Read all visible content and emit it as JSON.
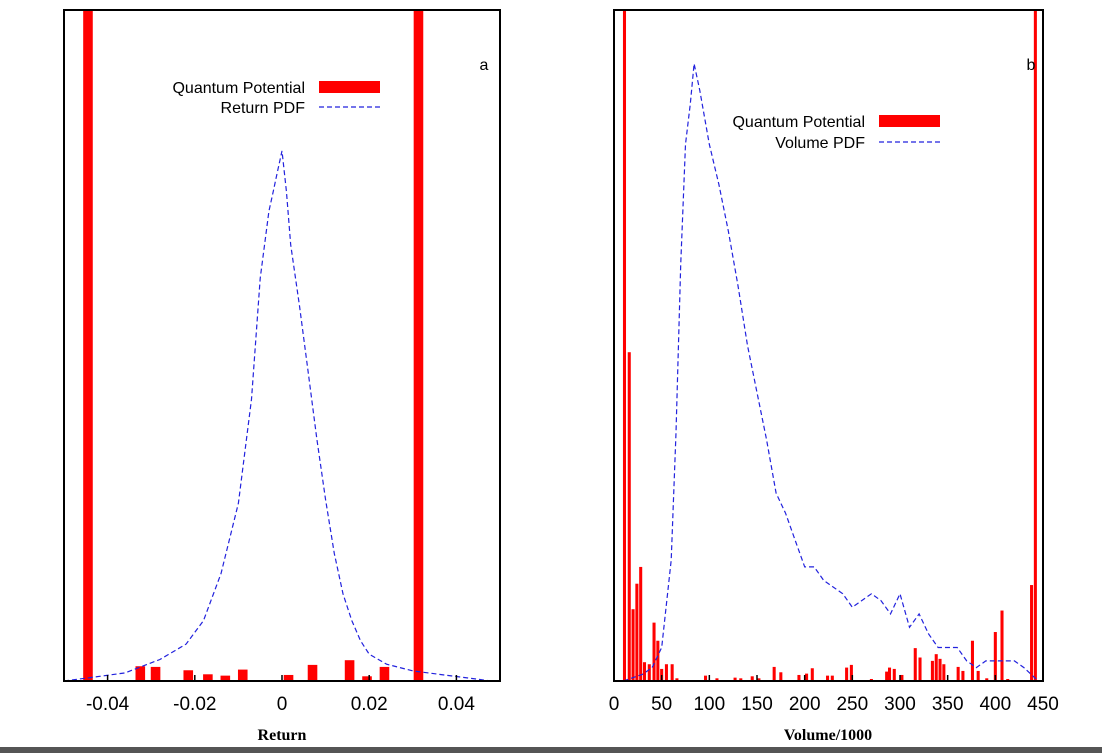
{
  "chart_data": [
    {
      "type": "bar",
      "panel_label": "a",
      "xlabel": "Return",
      "ylabel": "",
      "xlim": [
        -0.05,
        0.05
      ],
      "ylim": [
        0,
        1
      ],
      "x_ticks": [
        {
          "value": -0.04,
          "label": "-0.04"
        },
        {
          "value": -0.02,
          "label": "-0.02"
        },
        {
          "value": 0,
          "label": "0"
        },
        {
          "value": 0.02,
          "label": "0.02"
        },
        {
          "value": 0.04,
          "label": "0.04"
        }
      ],
      "legend": {
        "placement": "top-center",
        "entries": [
          {
            "label": "Quantum Potential",
            "style": "bar"
          },
          {
            "label": "Return PDF",
            "style": "dashed"
          }
        ]
      },
      "colors": {
        "bars": "#ff0000",
        "pdf": "#2222dd"
      },
      "series": [
        {
          "style": "bar",
          "bar_width": 0.0022,
          "x": [
            -0.0445,
            -0.0325,
            -0.029,
            -0.0215,
            -0.017,
            -0.013,
            -0.009,
            0.0015,
            0.007,
            0.0155,
            0.0195,
            0.0235,
            0.0313
          ],
          "values": [
            1.0,
            0.022,
            0.021,
            0.016,
            0.01,
            0.008,
            0.017,
            0.009,
            0.024,
            0.031,
            0.007,
            0.021,
            1.0
          ]
        },
        {
          "style": "dashed",
          "x": [
            -0.05,
            -0.044,
            -0.036,
            -0.028,
            -0.022,
            -0.018,
            -0.014,
            -0.01,
            -0.007,
            -0.005,
            -0.003,
            -0.002,
            -0.001,
            0.0,
            0.001,
            0.002,
            0.004,
            0.006,
            0.008,
            0.01,
            0.012,
            0.014,
            0.016,
            0.018,
            0.02,
            0.024,
            0.03,
            0.036,
            0.042,
            0.048
          ],
          "values": [
            0.0,
            0.005,
            0.012,
            0.032,
            0.055,
            0.09,
            0.16,
            0.265,
            0.42,
            0.6,
            0.7,
            0.73,
            0.76,
            0.79,
            0.73,
            0.65,
            0.56,
            0.46,
            0.36,
            0.27,
            0.19,
            0.13,
            0.09,
            0.06,
            0.04,
            0.025,
            0.015,
            0.01,
            0.005,
            0.0
          ]
        }
      ]
    },
    {
      "type": "bar",
      "panel_label": "b",
      "xlabel": "Volume/1000",
      "ylabel": "",
      "xlim": [
        0,
        450
      ],
      "ylim": [
        0,
        1
      ],
      "x_ticks": [
        {
          "value": 0,
          "label": "0"
        },
        {
          "value": 50,
          "label": "50"
        },
        {
          "value": 100,
          "label": "100"
        },
        {
          "value": 150,
          "label": "150"
        },
        {
          "value": 200,
          "label": "200"
        },
        {
          "value": 250,
          "label": "250"
        },
        {
          "value": 300,
          "label": "300"
        },
        {
          "value": 350,
          "label": "350"
        },
        {
          "value": 400,
          "label": "400"
        },
        {
          "value": 450,
          "label": "450"
        }
      ],
      "legend": {
        "placement": "top-right",
        "entries": [
          {
            "label": "Quantum Potential",
            "style": "bar"
          },
          {
            "label": "Volume PDF",
            "style": "dashed"
          }
        ]
      },
      "colors": {
        "bars": "#ff0000",
        "pdf": "#2222dd"
      },
      "series": [
        {
          "style": "bar",
          "bar_width": 3.2,
          "x": [
            11,
            16,
            20,
            24,
            28,
            32,
            37,
            42,
            46,
            50,
            55,
            61,
            66,
            96,
            108,
            127,
            133,
            145,
            152,
            168,
            175,
            194,
            202,
            208,
            224,
            229,
            244,
            249,
            270,
            286,
            289,
            294,
            302,
            316,
            321,
            334,
            338,
            342,
            346,
            361,
            366,
            376,
            382,
            391,
            400,
            407,
            413,
            438,
            442
          ],
          "values": [
            1.0,
            0.49,
            0.107,
            0.145,
            0.17,
            0.028,
            0.025,
            0.087,
            0.06,
            0.018,
            0.025,
            0.025,
            0.004,
            0.008,
            0.004,
            0.005,
            0.004,
            0.007,
            0.004,
            0.021,
            0.013,
            0.009,
            0.011,
            0.019,
            0.008,
            0.008,
            0.02,
            0.024,
            0.003,
            0.014,
            0.02,
            0.018,
            0.009,
            0.049,
            0.035,
            0.03,
            0.04,
            0.033,
            0.025,
            0.021,
            0.015,
            0.06,
            0.015,
            0.004,
            0.073,
            0.105,
            0.003,
            0.143,
            1.0
          ]
        },
        {
          "style": "dashed",
          "x": [
            10,
            20,
            30,
            40,
            50,
            60,
            65,
            70,
            75,
            80,
            84,
            90,
            100,
            110,
            120,
            130,
            140,
            150,
            160,
            170,
            180,
            190,
            200,
            210,
            220,
            230,
            240,
            250,
            260,
            270,
            280,
            290,
            300,
            310,
            320,
            330,
            340,
            350,
            360,
            370,
            380,
            390,
            400,
            410,
            420,
            430,
            445
          ],
          "values": [
            0.0,
            0.005,
            0.01,
            0.02,
            0.05,
            0.18,
            0.37,
            0.62,
            0.8,
            0.86,
            0.92,
            0.88,
            0.8,
            0.74,
            0.67,
            0.59,
            0.5,
            0.43,
            0.36,
            0.28,
            0.25,
            0.21,
            0.17,
            0.17,
            0.15,
            0.14,
            0.13,
            0.11,
            0.12,
            0.13,
            0.12,
            0.1,
            0.13,
            0.08,
            0.1,
            0.07,
            0.05,
            0.05,
            0.05,
            0.03,
            0.02,
            0.03,
            0.03,
            0.03,
            0.03,
            0.02,
            0.0
          ]
        }
      ]
    }
  ]
}
